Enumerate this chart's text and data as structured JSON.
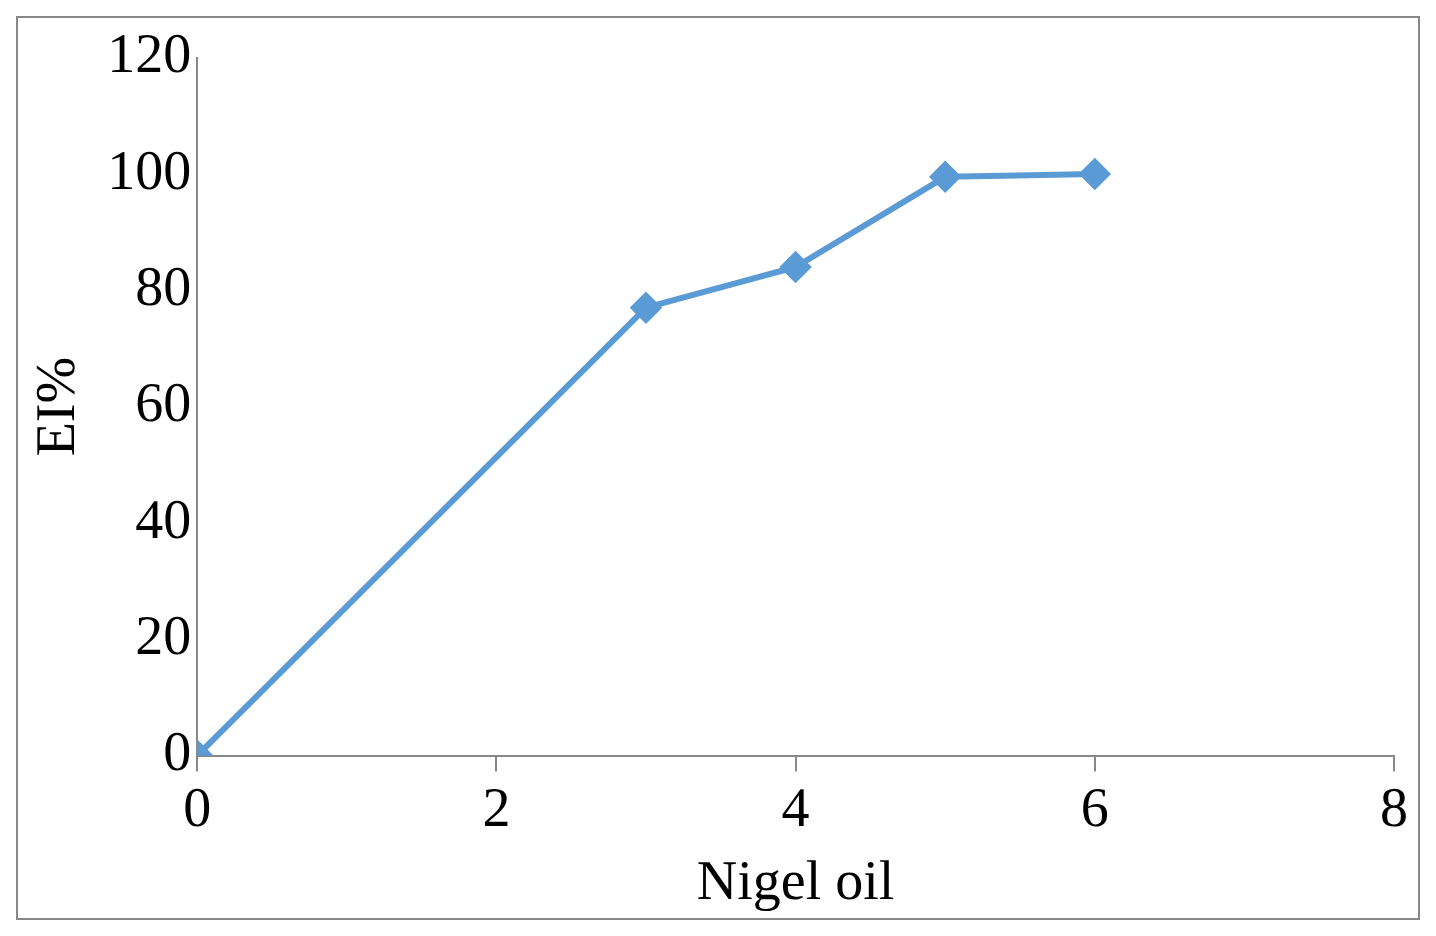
{
  "chart_data": {
    "type": "line",
    "xlabel": "Nigel oil",
    "ylabel": "EI%",
    "x": [
      0,
      3,
      4,
      5,
      6
    ],
    "series": [
      {
        "color": "#5b9bd5",
        "values": [
          0,
          77,
          84,
          99.5,
          100
        ]
      }
    ],
    "xlim": [
      0,
      8
    ],
    "xticks": [
      0,
      2,
      4,
      6,
      8
    ],
    "ylim": [
      0,
      120
    ],
    "yticks": [
      0,
      20,
      40,
      60,
      80,
      100,
      120
    ],
    "grid": false,
    "legend": false,
    "marker": "diamond",
    "line_style": "solid"
  }
}
